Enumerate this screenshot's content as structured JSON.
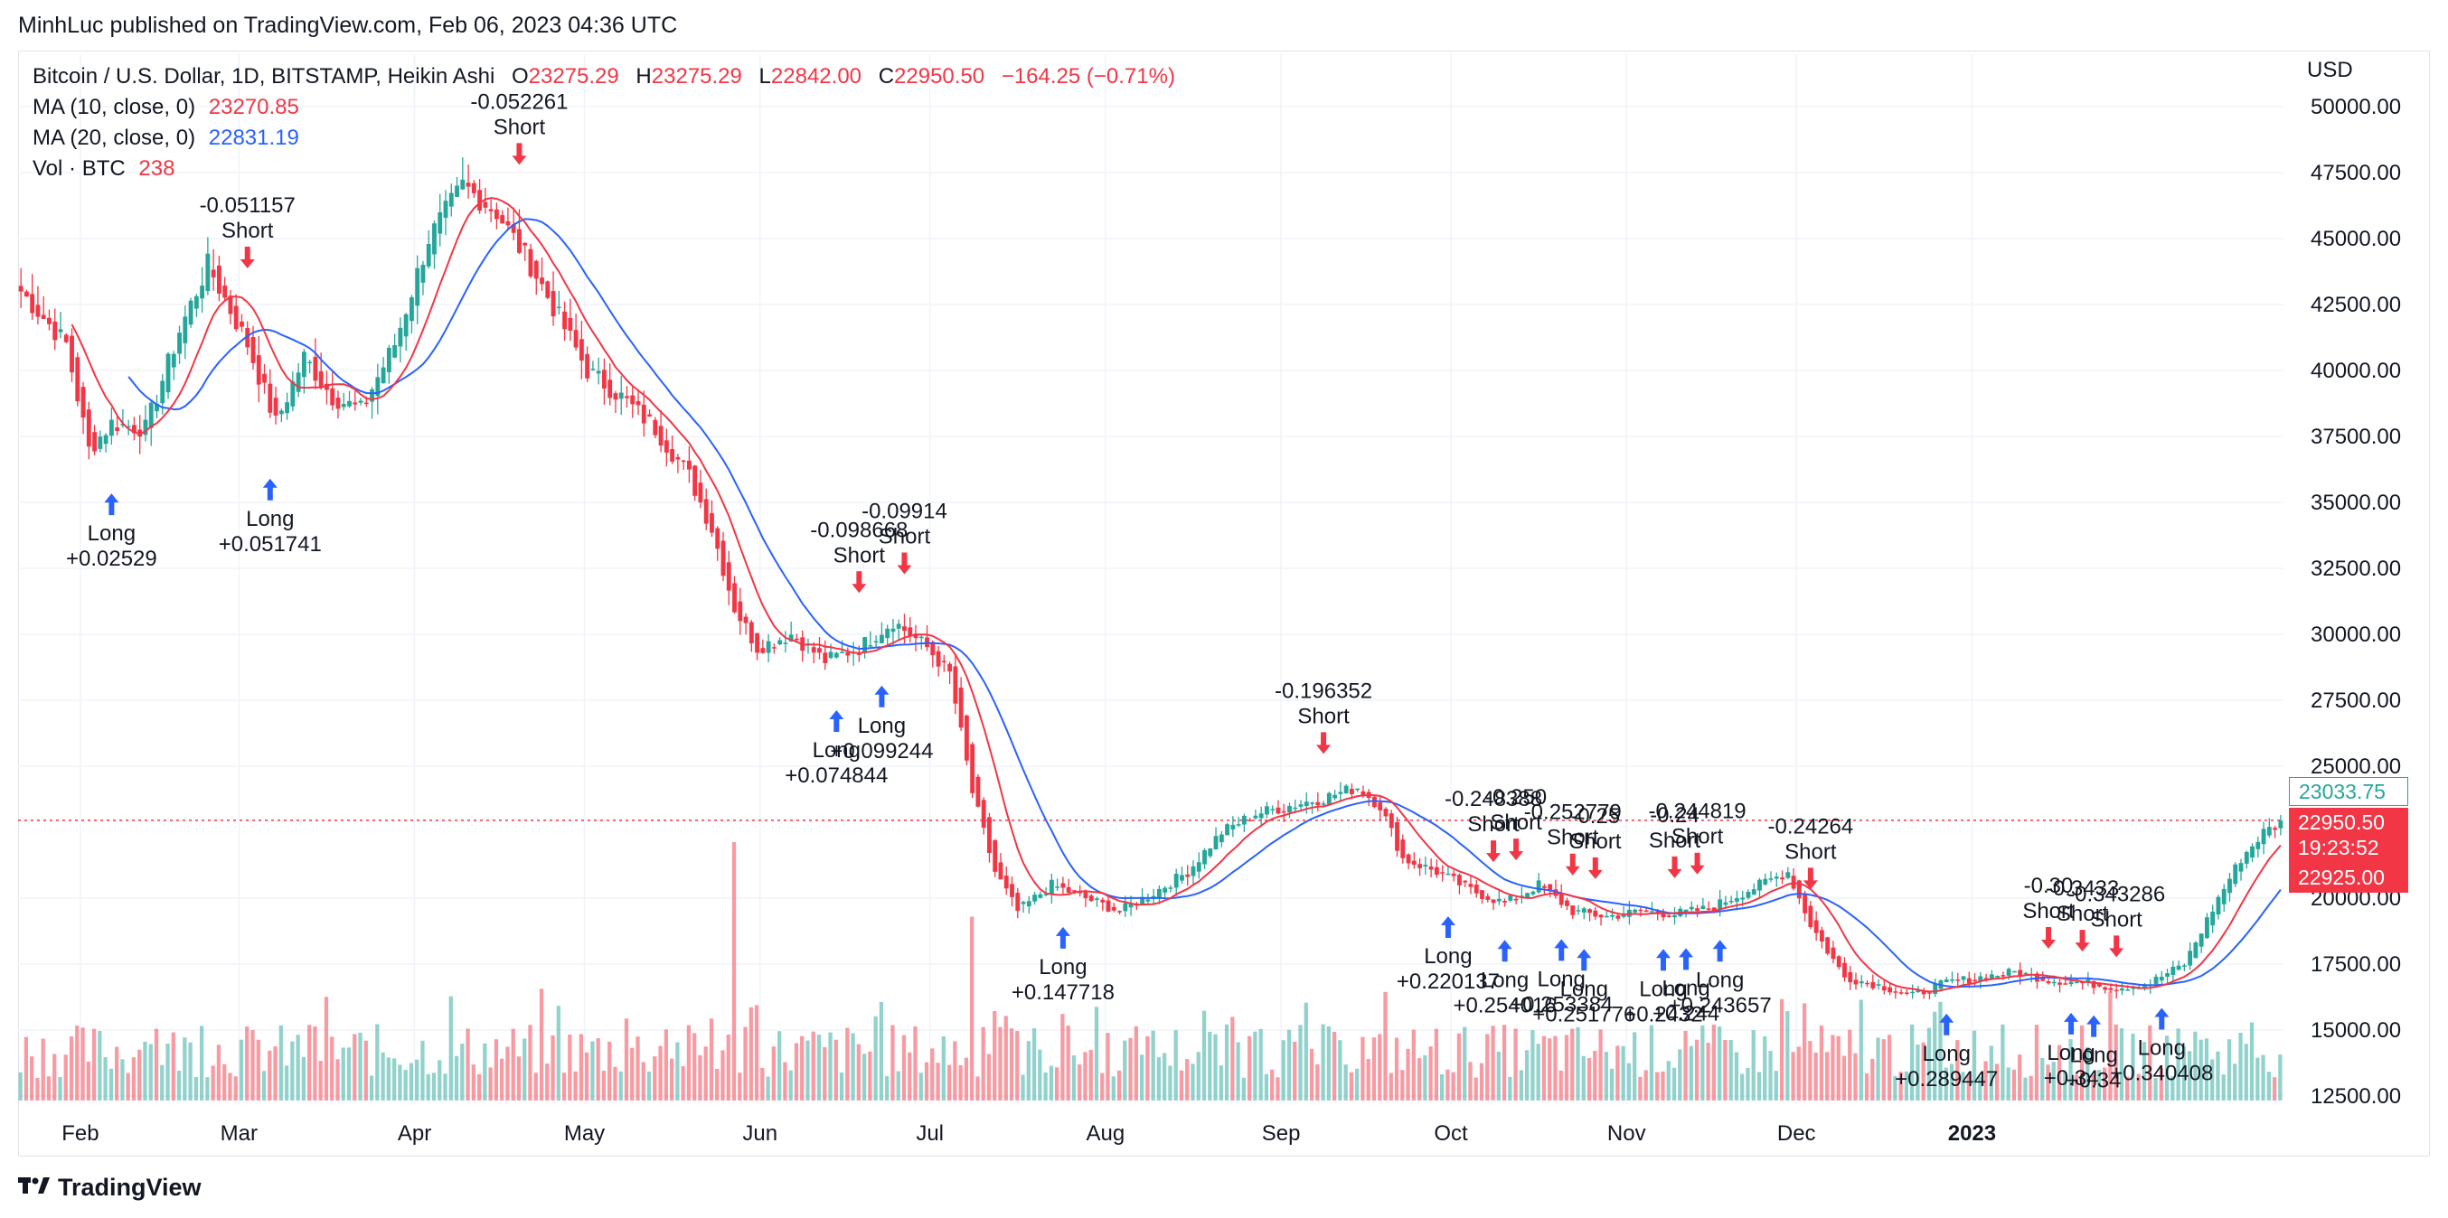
{
  "header": {
    "published": "MinhLuc published on TradingView.com, Feb 06, 2023 04:36 UTC"
  },
  "legend": {
    "symbol": "Bitcoin / U.S. Dollar, 1D, BITSTAMP, Heikin Ashi",
    "o_label": "O",
    "o_value": "23275.29",
    "h_label": "H",
    "h_value": "23275.29",
    "l_label": "L",
    "l_value": "22842.00",
    "c_label": "C",
    "c_value": "22950.50",
    "change": "−164.25 (−0.71%)",
    "ma10_label": "MA (10, close, 0)",
    "ma10_value": "23270.85",
    "ma20_label": "MA (20, close, 0)",
    "ma20_value": "22831.19",
    "vol_label": "Vol · BTC",
    "vol_value": "238"
  },
  "price_axis": {
    "currency": "USD",
    "tag_high": "23033.75",
    "tag_close": "22950.50",
    "tag_countdown": "19:23:52",
    "tag_low": "22925.00"
  },
  "brand": {
    "name": "TradingView",
    "logo_icon": "tradingview-logo-icon"
  },
  "colors": {
    "up": "#26a69a",
    "down": "#f23645",
    "ma10": "#f23645",
    "ma20": "#2962ff",
    "long_arrow": "#2962ff",
    "short_arrow": "#f23645"
  },
  "chart_data": {
    "type": "candlestick",
    "ylim": [
      12500,
      50000
    ],
    "y_ticks": [
      "50000.00",
      "47500.00",
      "45000.00",
      "42500.00",
      "40000.00",
      "37500.00",
      "35000.00",
      "32500.00",
      "30000.00",
      "27500.00",
      "25000.00",
      "20000.00",
      "17500.00",
      "15000.00",
      "12500.00"
    ],
    "x_ticks": [
      "Feb",
      "Mar",
      "Apr",
      "May",
      "Jun",
      "Jul",
      "Aug",
      "Sep",
      "Oct",
      "Nov",
      "Dec",
      "2023"
    ],
    "current_price": 22950.5,
    "price_path": [
      [
        0,
        43000
      ],
      [
        8,
        41000
      ],
      [
        12,
        37000
      ],
      [
        16,
        38000
      ],
      [
        22,
        37800
      ],
      [
        28,
        41500
      ],
      [
        33,
        44000
      ],
      [
        40,
        41000
      ],
      [
        45,
        38000
      ],
      [
        50,
        40500
      ],
      [
        55,
        39000
      ],
      [
        60,
        38500
      ],
      [
        66,
        41000
      ],
      [
        72,
        45000
      ],
      [
        78,
        47000
      ],
      [
        84,
        46000
      ],
      [
        90,
        44000
      ],
      [
        95,
        42000
      ],
      [
        100,
        40000
      ],
      [
        106,
        39000
      ],
      [
        112,
        37800
      ],
      [
        118,
        36000
      ],
      [
        122,
        34000
      ],
      [
        126,
        31000
      ],
      [
        130,
        29500
      ],
      [
        136,
        30000
      ],
      [
        142,
        29000
      ],
      [
        148,
        29500
      ],
      [
        154,
        30500
      ],
      [
        160,
        29500
      ],
      [
        164,
        28500
      ],
      [
        168,
        24000
      ],
      [
        172,
        21000
      ],
      [
        176,
        19500
      ],
      [
        182,
        20500
      ],
      [
        188,
        20000
      ],
      [
        194,
        19500
      ],
      [
        200,
        20200
      ],
      [
        206,
        21000
      ],
      [
        212,
        22500
      ],
      [
        218,
        23200
      ],
      [
        224,
        23500
      ],
      [
        230,
        23800
      ],
      [
        236,
        24200
      ],
      [
        240,
        23500
      ],
      [
        244,
        21500
      ],
      [
        250,
        21000
      ],
      [
        256,
        20300
      ],
      [
        262,
        19800
      ],
      [
        268,
        20500
      ],
      [
        274,
        19500
      ],
      [
        280,
        19300
      ],
      [
        286,
        19500
      ],
      [
        292,
        19400
      ],
      [
        298,
        19600
      ],
      [
        304,
        20200
      ],
      [
        310,
        20800
      ],
      [
        312,
        21000
      ],
      [
        316,
        19000
      ],
      [
        322,
        17000
      ],
      [
        328,
        16700
      ],
      [
        334,
        16300
      ],
      [
        340,
        16800
      ],
      [
        346,
        17000
      ],
      [
        352,
        17200
      ],
      [
        358,
        16900
      ],
      [
        364,
        16800
      ],
      [
        370,
        16600
      ],
      [
        376,
        16800
      ],
      [
        382,
        17500
      ],
      [
        388,
        20000
      ],
      [
        392,
        21500
      ],
      [
        396,
        22500
      ],
      [
        400,
        22950
      ]
    ],
    "volume_spikes": [
      [
        126,
        520
      ],
      [
        168,
        370
      ],
      [
        172,
        180
      ],
      [
        176,
        140
      ],
      [
        312,
        180
      ],
      [
        316,
        120
      ],
      [
        322,
        90
      ]
    ],
    "signals": [
      {
        "type": "Long",
        "day": 16,
        "value": "+0.02529"
      },
      {
        "type": "Short",
        "day": 40,
        "value": "-0.051157"
      },
      {
        "type": "Long",
        "day": 44,
        "value": "+0.051741"
      },
      {
        "type": "Short",
        "day": 88,
        "value": "-0.052261"
      },
      {
        "type": "Long",
        "day": 144,
        "value": "+0.074844"
      },
      {
        "type": "Short",
        "day": 148,
        "value": "-0.098668"
      },
      {
        "type": "Long",
        "day": 152,
        "value": "+0.099244"
      },
      {
        "type": "Short",
        "day": 156,
        "value": "-0.09914"
      },
      {
        "type": "Long",
        "day": 184,
        "value": "+0.147718"
      },
      {
        "type": "Short",
        "day": 230,
        "value": "-0.196352"
      },
      {
        "type": "Long",
        "day": 252,
        "value": "+0.220137"
      },
      {
        "type": "Short",
        "day": 260,
        "value": "-0.248388"
      },
      {
        "type": "Long",
        "day": 262,
        "value": "+0.254016"
      },
      {
        "type": "Short",
        "day": 264,
        "value": "-0.250"
      },
      {
        "type": "Long",
        "day": 272,
        "value": "+0.253384"
      },
      {
        "type": "Short",
        "day": 274,
        "value": "-0.252779"
      },
      {
        "type": "Long",
        "day": 276,
        "value": "+0.251776"
      },
      {
        "type": "Short",
        "day": 278,
        "value": "-0.25"
      },
      {
        "type": "Long",
        "day": 290,
        "value": "+0.2432"
      },
      {
        "type": "Short",
        "day": 292,
        "value": "-0.24"
      },
      {
        "type": "Long",
        "day": 294,
        "value": "+0.244"
      },
      {
        "type": "Short",
        "day": 296,
        "value": "-0.244819"
      },
      {
        "type": "Long",
        "day": 300,
        "value": "+0.243657"
      },
      {
        "type": "Short",
        "day": 316,
        "value": "-0.24264"
      },
      {
        "type": "Long",
        "day": 340,
        "value": "+0.289447"
      },
      {
        "type": "Short",
        "day": 358,
        "value": "-0.30"
      },
      {
        "type": "Long",
        "day": 362,
        "value": "+0.34"
      },
      {
        "type": "Short",
        "day": 364,
        "value": "-0.3433"
      },
      {
        "type": "Long",
        "day": 366,
        "value": "+0.34"
      },
      {
        "type": "Short",
        "day": 370,
        "value": "-0.343286"
      },
      {
        "type": "Long",
        "day": 378,
        "value": "+0.340408"
      }
    ]
  }
}
